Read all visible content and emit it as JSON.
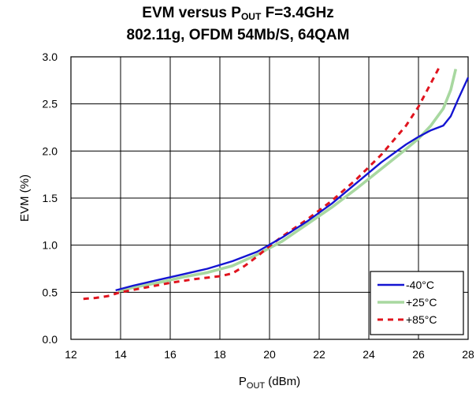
{
  "chart_data": {
    "type": "line",
    "title_line1": {
      "prefix": "EVM versus P",
      "sub": "OUT",
      "suffix": " F=3.4GHz"
    },
    "title_line2": "802.11g, OFDM 54Mb/S, 64QAM",
    "xlabel": {
      "prefix": "P",
      "sub": "OUT",
      "suffix": " (dBm)"
    },
    "ylabel": "EVM (%)",
    "xlim": [
      12,
      28
    ],
    "ylim": [
      0.0,
      3.0
    ],
    "xticks": [
      "12",
      "14",
      "16",
      "18",
      "20",
      "22",
      "24",
      "26",
      "28"
    ],
    "yticks": [
      "0.0",
      "0.5",
      "1.0",
      "1.5",
      "2.0",
      "2.5",
      "3.0"
    ],
    "grid": true,
    "legend_position": "bottom-right",
    "series": [
      {
        "name": "-40°C",
        "color": "#1414d2",
        "style": "solid",
        "x": [
          13.8,
          14.5,
          15.5,
          16.5,
          17.5,
          18.5,
          19.5,
          20.5,
          21.5,
          22.5,
          23.5,
          24.5,
          25.5,
          26.0,
          26.5,
          27.0,
          27.3,
          27.6,
          28.0
        ],
        "y": [
          0.52,
          0.57,
          0.63,
          0.69,
          0.75,
          0.83,
          0.93,
          1.08,
          1.25,
          1.44,
          1.66,
          1.88,
          2.07,
          2.15,
          2.22,
          2.27,
          2.37,
          2.55,
          2.78
        ]
      },
      {
        "name": "+25°C",
        "color": "#a8d8a0",
        "style": "solid",
        "x": [
          13.9,
          14.5,
          15.5,
          16.5,
          17.5,
          18.5,
          19.5,
          20.5,
          21.5,
          22.5,
          23.5,
          24.5,
          25.5,
          26.0,
          26.5,
          27.0,
          27.3,
          27.5
        ],
        "y": [
          0.51,
          0.55,
          0.6,
          0.66,
          0.71,
          0.78,
          0.9,
          1.04,
          1.22,
          1.4,
          1.6,
          1.81,
          2.02,
          2.13,
          2.27,
          2.45,
          2.65,
          2.87
        ]
      },
      {
        "name": "+85°C",
        "color": "#e0141e",
        "style": "dashed",
        "x": [
          12.5,
          13.0,
          13.5,
          14.0,
          15.0,
          16.0,
          17.0,
          18.0,
          18.5,
          19.0,
          19.5,
          20.0,
          20.5,
          21.5,
          22.5,
          23.5,
          24.5,
          25.5,
          26.0,
          26.5,
          26.9
        ],
        "y": [
          0.43,
          0.44,
          0.46,
          0.5,
          0.55,
          0.6,
          0.64,
          0.67,
          0.7,
          0.78,
          0.88,
          0.99,
          1.09,
          1.27,
          1.47,
          1.7,
          1.96,
          2.27,
          2.47,
          2.72,
          2.92
        ]
      }
    ]
  }
}
